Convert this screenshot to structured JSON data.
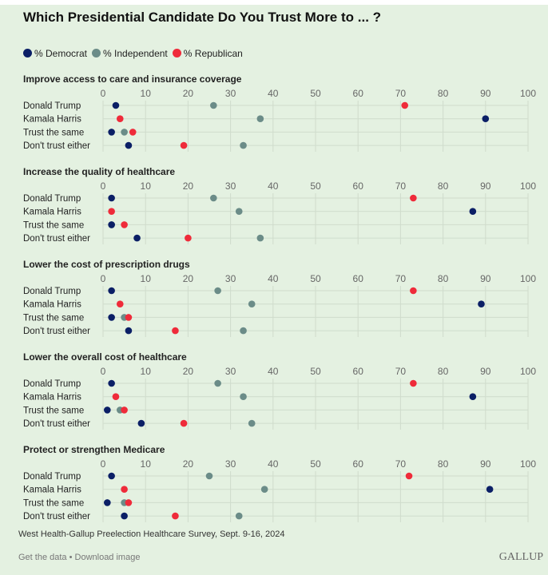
{
  "chart_data": {
    "type": "scatter",
    "title": "Which Presidential Candidate Do You Trust More to ... ?",
    "xlim": [
      0,
      100
    ],
    "ticks": [
      0,
      10,
      20,
      30,
      40,
      50,
      60,
      70,
      80,
      90,
      100
    ],
    "legend": [
      {
        "name": "% Democrat",
        "color": "#0b1f66"
      },
      {
        "name": "% Independent",
        "color": "#6b8c88"
      },
      {
        "name": "% Republican",
        "color": "#ef2b3a"
      }
    ],
    "legend_position": "top-left",
    "rows": [
      "Donald Trump",
      "Kamala Harris",
      "Trust the same",
      "Don't trust either"
    ],
    "panels": [
      {
        "title": "Improve access to care and insurance coverage",
        "democrat": [
          3,
          90,
          2,
          6
        ],
        "independent": [
          26,
          37,
          5,
          33
        ],
        "republican": [
          71,
          4,
          7,
          19
        ]
      },
      {
        "title": "Increase the quality of healthcare",
        "democrat": [
          2,
          87,
          2,
          8
        ],
        "independent": [
          26,
          32,
          2,
          37
        ],
        "republican": [
          73,
          2,
          5,
          20
        ]
      },
      {
        "title": "Lower the cost of prescription drugs",
        "democrat": [
          2,
          89,
          2,
          6
        ],
        "independent": [
          27,
          35,
          5,
          33
        ],
        "republican": [
          73,
          4,
          6,
          17
        ]
      },
      {
        "title": "Lower the overall cost of healthcare",
        "democrat": [
          2,
          87,
          1,
          9
        ],
        "independent": [
          27,
          33,
          4,
          35
        ],
        "republican": [
          73,
          3,
          5,
          19
        ]
      },
      {
        "title": "Protect or strengthen Medicare",
        "democrat": [
          2,
          91,
          1,
          5
        ],
        "independent": [
          25,
          38,
          5,
          32
        ],
        "republican": [
          72,
          5,
          6,
          17
        ]
      }
    ]
  },
  "source": "West Health-Gallup Preelection Healthcare Survey, Sept. 9-16, 2024",
  "links": "Get the data • Download image",
  "logo": "GALLUP"
}
